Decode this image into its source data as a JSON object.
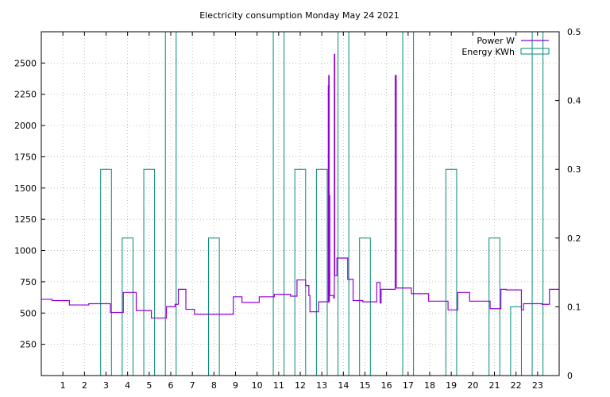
{
  "chart_data": {
    "type": "line",
    "title": "Electricity consumption Monday May 24 2021",
    "xlabel": "",
    "ylabel": "",
    "y2label": "",
    "xlim": [
      0,
      24
    ],
    "ylim": [
      0,
      2750
    ],
    "y2lim": [
      0,
      0.5
    ],
    "x_ticks": [
      1,
      2,
      3,
      4,
      5,
      6,
      7,
      8,
      9,
      10,
      11,
      12,
      13,
      14,
      15,
      16,
      17,
      18,
      19,
      20,
      21,
      22,
      23
    ],
    "y_ticks": [
      250,
      500,
      750,
      1000,
      1250,
      1500,
      1750,
      2000,
      2250,
      2500
    ],
    "y2_ticks": [
      0,
      0.1,
      0.2,
      0.3,
      0.4,
      0.5
    ],
    "grid": true,
    "legend_position": "top-right",
    "series": [
      {
        "name": "Power W",
        "axis": "y1",
        "style": "steps",
        "color": "#9400d3",
        "points": [
          [
            0,
            610
          ],
          [
            0.5,
            600
          ],
          [
            1.3,
            565
          ],
          [
            2.2,
            575
          ],
          [
            3.2,
            505
          ],
          [
            3.8,
            665
          ],
          [
            4.4,
            520
          ],
          [
            5.1,
            460
          ],
          [
            5.8,
            550
          ],
          [
            6.2,
            570
          ],
          [
            6.35,
            690
          ],
          [
            6.7,
            530
          ],
          [
            7.1,
            490
          ],
          [
            8.6,
            490
          ],
          [
            8.9,
            630
          ],
          [
            9.3,
            585
          ],
          [
            10.1,
            630
          ],
          [
            10.8,
            650
          ],
          [
            11.55,
            635
          ],
          [
            11.85,
            765
          ],
          [
            12.25,
            720
          ],
          [
            12.4,
            640
          ],
          [
            12.45,
            510
          ],
          [
            12.85,
            590
          ],
          [
            13.3,
            2320
          ],
          [
            13.32,
            2400
          ],
          [
            13.34,
            590
          ],
          [
            13.35,
            1440
          ],
          [
            13.37,
            640
          ],
          [
            13.55,
            620
          ],
          [
            13.58,
            2570
          ],
          [
            13.6,
            800
          ],
          [
            13.7,
            940
          ],
          [
            14.2,
            770
          ],
          [
            14.45,
            600
          ],
          [
            14.9,
            590
          ],
          [
            15.4,
            590
          ],
          [
            15.55,
            745
          ],
          [
            15.7,
            580
          ],
          [
            15.75,
            690
          ],
          [
            16.35,
            690
          ],
          [
            16.4,
            2400
          ],
          [
            16.45,
            700
          ],
          [
            17.15,
            655
          ],
          [
            17.95,
            595
          ],
          [
            18.85,
            525
          ],
          [
            19.3,
            665
          ],
          [
            19.85,
            595
          ],
          [
            20.8,
            535
          ],
          [
            21.3,
            690
          ],
          [
            21.55,
            685
          ],
          [
            22.25,
            525
          ],
          [
            22.35,
            575
          ],
          [
            23.2,
            570
          ],
          [
            23.55,
            690
          ],
          [
            24,
            690
          ]
        ]
      },
      {
        "name": "Energy KWh",
        "axis": "y2",
        "style": "impulse-bars",
        "color": "#008b74",
        "bars": [
          {
            "x": 3,
            "value": 0.3
          },
          {
            "x": 4,
            "value": 0.2
          },
          {
            "x": 5,
            "value": 0.3
          },
          {
            "x": 6,
            "value": 0.5
          },
          {
            "x": 8,
            "value": 0.2
          },
          {
            "x": 11,
            "value": 0.5
          },
          {
            "x": 12,
            "value": 0.3
          },
          {
            "x": 13,
            "value": 0.3
          },
          {
            "x": 14,
            "value": 0.5
          },
          {
            "x": 15,
            "value": 0.2
          },
          {
            "x": 17,
            "value": 0.5
          },
          {
            "x": 19,
            "value": 0.3
          },
          {
            "x": 21,
            "value": 0.2
          },
          {
            "x": 22,
            "value": 0.1
          },
          {
            "x": 23,
            "value": 0.5
          }
        ]
      }
    ]
  }
}
